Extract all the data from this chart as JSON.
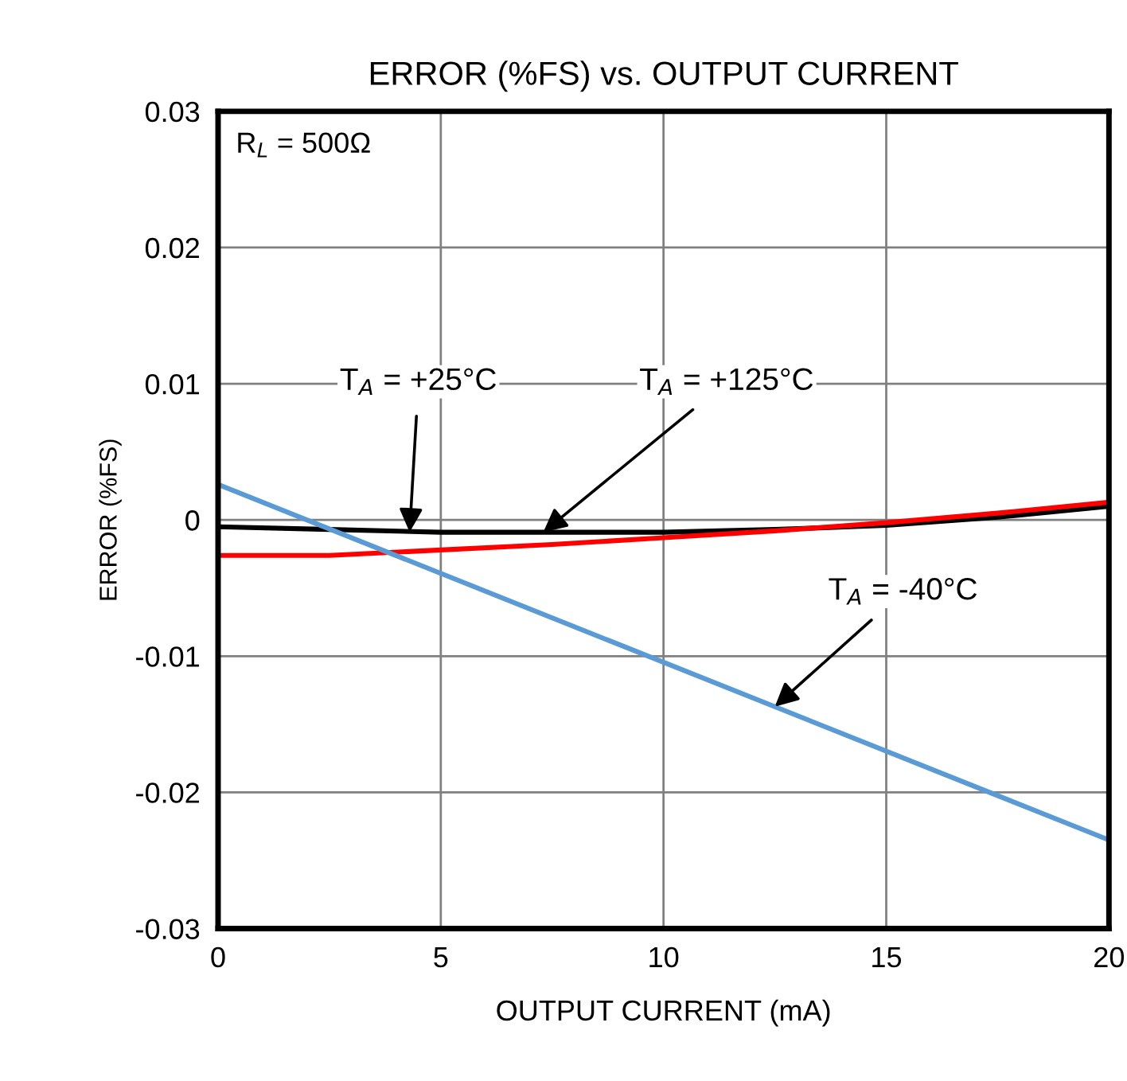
{
  "chart_data": {
    "type": "line",
    "title": "ERROR (%FS) vs. OUTPUT CURRENT",
    "xlabel": "OUTPUT CURRENT (mA)",
    "ylabel": "ERROR (%FS)",
    "series": [
      {
        "color": "#000000",
        "x": [
          0,
          2.5,
          5,
          7.5,
          10,
          12.5,
          15,
          17.5,
          20
        ],
        "values": [
          -0.0005,
          -0.0007,
          -0.0009,
          -0.0009,
          -0.0009,
          -0.0007,
          -0.0004,
          0.0002,
          0.001
        ]
      },
      {
        "color": "#ff0000",
        "x": [
          0,
          2.5,
          5,
          7.5,
          10,
          12.5,
          15,
          17.5,
          20
        ],
        "values": [
          -0.0026,
          -0.0026,
          -0.0022,
          -0.0018,
          -0.0013,
          -0.0008,
          -0.0002,
          0.0005,
          0.0013
        ]
      },
      {
        "color": "#5b9bd5",
        "x": [
          0,
          20
        ],
        "values": [
          0.0026,
          -0.0235
        ]
      }
    ],
    "annotations": [
      "R$_{L}$ = 500Ω",
      {
        "text": "T$_{A}$ = +25°C",
        "x": 4.3,
        "y": -0.0009
      },
      {
        "text": "T$_{A}$ = +125°C",
        "x": 7.3,
        "y": -0.0009
      },
      {
        "text": "T$_{A}$ = -40°C",
        "x": 12.5,
        "y": -0.0137
      }
    ],
    "xlim": [
      0,
      20
    ],
    "ylim": [
      -0.03,
      0.03
    ],
    "xticks": [
      0,
      5,
      10,
      15,
      20
    ],
    "yticks": [
      -0.03,
      -0.02,
      -0.01,
      0,
      0.01,
      0.02,
      0.03
    ],
    "grid": true,
    "legend": false,
    "marker": "none",
    "line_style": "solid"
  }
}
